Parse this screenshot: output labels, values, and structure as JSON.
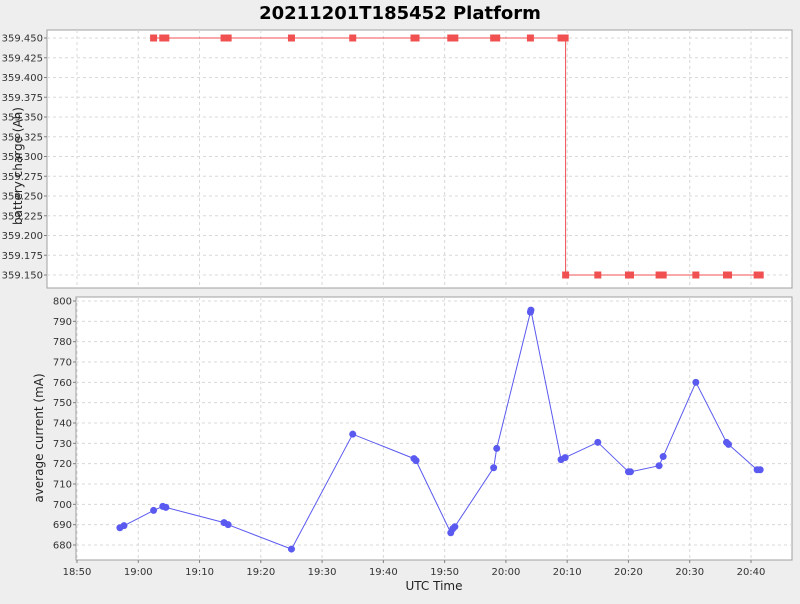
{
  "chart_data": {
    "title": "20211201T185452 Platform",
    "xlabel": "UTC Time",
    "x_ticks": [
      "18:50",
      "19:00",
      "19:10",
      "19:20",
      "19:30",
      "19:40",
      "19:50",
      "20:00",
      "20:10",
      "20:20",
      "20:30",
      "20:40"
    ],
    "x_range": [
      "18:50",
      "20:46"
    ],
    "grid": true,
    "panels": [
      {
        "type": "line",
        "ylabel": "battery charge (Ah)",
        "ylim": [
          359.14,
          359.46
        ],
        "y_ticks": [
          "359.150",
          "359.175",
          "359.200",
          "359.225",
          "359.250",
          "359.275",
          "359.300",
          "359.325",
          "359.350",
          "359.375",
          "359.400",
          "359.425",
          "359.450"
        ],
        "series": [
          {
            "color": "#f05050",
            "marker": "square",
            "step": true,
            "x": [
              "19:02:30",
              "19:04:00",
              "19:04:30",
              "19:14:00",
              "19:14:40",
              "19:25:00",
              "19:35:00",
              "19:45:00",
              "19:45:20",
              "19:51:00",
              "19:51:40",
              "19:58:00",
              "19:58:30",
              "20:04:00",
              "20:09:00",
              "20:09:40",
              "20:09:45",
              "20:15:00",
              "20:20:00",
              "20:20:20",
              "20:25:00",
              "20:25:40",
              "20:31:00",
              "20:36:00",
              "20:36:20",
              "20:41:00",
              "20:41:30"
            ],
            "y": [
              359.45,
              359.45,
              359.45,
              359.45,
              359.45,
              359.45,
              359.45,
              359.45,
              359.45,
              359.45,
              359.45,
              359.45,
              359.45,
              359.45,
              359.45,
              359.45,
              359.15,
              359.15,
              359.15,
              359.15,
              359.15,
              359.15,
              359.15,
              359.15,
              359.15,
              359.15,
              359.15
            ]
          }
        ]
      },
      {
        "type": "line",
        "ylabel": "average current (mA)",
        "ylim": [
          672,
          802
        ],
        "y_ticks": [
          "680",
          "690",
          "700",
          "710",
          "720",
          "730",
          "740",
          "750",
          "760",
          "770",
          "780",
          "790",
          "800"
        ],
        "series": [
          {
            "color": "#5a5af0",
            "marker": "circle",
            "x": [
              "18:57:00",
              "18:57:40",
              "19:02:30",
              "19:04:00",
              "19:04:30",
              "19:14:00",
              "19:14:40",
              "19:25:00",
              "19:35:00",
              "19:45:00",
              "19:45:20",
              "19:51:00",
              "19:51:20",
              "19:51:40",
              "19:58:00",
              "19:58:30",
              "20:04:00",
              "20:04:05",
              "20:09:00",
              "20:09:40",
              "20:15:00",
              "20:20:00",
              "20:20:20",
              "20:25:00",
              "20:25:40",
              "20:31:00",
              "20:36:00",
              "20:36:20",
              "20:41:00",
              "20:41:30"
            ],
            "y": [
              688.5,
              689.5,
              697,
              699,
              698.5,
              691,
              690,
              678,
              734.5,
              722.5,
              721.5,
              686,
              688,
              689,
              718,
              727.5,
              794.5,
              795.5,
              722,
              723,
              730.5,
              716,
              716,
              719,
              723.5,
              760,
              730.5,
              729.5,
              717,
              717
            ]
          }
        ]
      }
    ]
  }
}
